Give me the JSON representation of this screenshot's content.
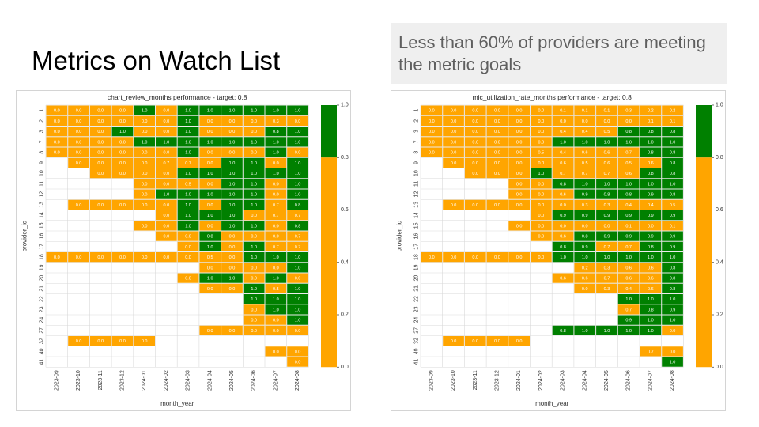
{
  "slide": {
    "title": "Metrics on Watch List",
    "callout": "Less than 60% of providers are meeting the metric goals"
  },
  "colors": {
    "meets_target": "#008000",
    "below_target": "#ffa500",
    "grid": "#d9d9d9"
  },
  "chart_data": [
    {
      "type": "heatmap",
      "title": "chart_review_months performance - target: 0.8",
      "xlabel": "month_year",
      "ylabel": "provider_id",
      "x": [
        "2023-09",
        "2023-10",
        "2023-11",
        "2023-12",
        "2024-01",
        "2024-02",
        "2024-03",
        "2024-04",
        "2024-05",
        "2024-06",
        "2024-07",
        "2024-08"
      ],
      "y": [
        "1",
        "2",
        "3",
        "7",
        "8",
        "9",
        "10",
        "11",
        "12",
        "13",
        "14",
        "15",
        "16",
        "17",
        "18",
        "19",
        "20",
        "21",
        "22",
        "23",
        "24",
        "27",
        "32",
        "40",
        "41"
      ],
      "values": [
        [
          0.0,
          0.0,
          0.0,
          0.0,
          1.0,
          0.0,
          1.0,
          1.0,
          1.0,
          1.0,
          1.0,
          1.0
        ],
        [
          0.0,
          0.0,
          0.0,
          0.0,
          0.0,
          0.0,
          1.0,
          0.0,
          0.0,
          0.0,
          0.3,
          0.0
        ],
        [
          0.0,
          0.0,
          0.0,
          1.0,
          0.0,
          0.0,
          1.0,
          0.0,
          0.0,
          0.0,
          0.8,
          1.0
        ],
        [
          0.0,
          0.0,
          0.0,
          0.0,
          1.0,
          1.0,
          1.0,
          1.0,
          1.0,
          1.0,
          1.0,
          1.0
        ],
        [
          0.0,
          0.0,
          0.0,
          0.0,
          0.0,
          0.0,
          1.0,
          0.0,
          0.0,
          0.0,
          1.0,
          0.0
        ],
        [
          null,
          0.0,
          0.0,
          0.0,
          0.0,
          0.7,
          0.7,
          0.0,
          1.0,
          1.0,
          0.0,
          1.0
        ],
        [
          null,
          null,
          0.0,
          0.0,
          0.0,
          0.0,
          1.0,
          1.0,
          1.0,
          1.0,
          1.0,
          1.0
        ],
        [
          null,
          null,
          null,
          null,
          0.0,
          0.0,
          0.5,
          0.0,
          1.0,
          1.0,
          0.0,
          1.0
        ],
        [
          null,
          null,
          null,
          null,
          0.0,
          1.0,
          1.0,
          1.0,
          1.0,
          1.0,
          0.0,
          1.0
        ],
        [
          null,
          0.0,
          0.0,
          0.0,
          0.0,
          0.0,
          1.0,
          0.0,
          1.0,
          1.0,
          0.7,
          0.8
        ],
        [
          null,
          null,
          null,
          null,
          null,
          0.0,
          1.0,
          1.0,
          1.0,
          0.0,
          0.7,
          0.7
        ],
        [
          null,
          null,
          null,
          null,
          0.0,
          0.0,
          1.0,
          0.0,
          1.0,
          1.0,
          0.0,
          0.8
        ],
        [
          null,
          null,
          null,
          null,
          null,
          0.0,
          0.0,
          0.8,
          0.0,
          0.0,
          0.0,
          0.7
        ],
        [
          null,
          null,
          null,
          null,
          null,
          null,
          0.0,
          1.0,
          0.0,
          1.0,
          0.7,
          0.7
        ],
        [
          0.0,
          0.0,
          0.0,
          0.0,
          0.0,
          0.0,
          0.0,
          0.5,
          0.0,
          1.0,
          1.0,
          1.0
        ],
        [
          null,
          null,
          null,
          null,
          null,
          null,
          null,
          0.0,
          0.0,
          0.0,
          0.0,
          1.0
        ],
        [
          null,
          null,
          null,
          null,
          null,
          null,
          0.0,
          1.0,
          1.0,
          0.0,
          1.0,
          0.0
        ],
        [
          null,
          null,
          null,
          null,
          null,
          null,
          null,
          0.0,
          0.0,
          1.0,
          0.5,
          1.0
        ],
        [
          null,
          null,
          null,
          null,
          null,
          null,
          null,
          null,
          null,
          1.0,
          1.0,
          1.0
        ],
        [
          null,
          null,
          null,
          null,
          null,
          null,
          null,
          null,
          null,
          0.0,
          1.0,
          1.0
        ],
        [
          null,
          null,
          null,
          null,
          null,
          null,
          null,
          null,
          null,
          0.0,
          0.0,
          1.0
        ],
        [
          null,
          null,
          null,
          null,
          null,
          null,
          null,
          0.0,
          0.0,
          0.0,
          0.0,
          0.0
        ],
        [
          null,
          0.0,
          0.0,
          0.0,
          0.0,
          null,
          null,
          null,
          null,
          null,
          null,
          null
        ],
        [
          null,
          null,
          null,
          null,
          null,
          null,
          null,
          null,
          null,
          null,
          0.0,
          0.0
        ],
        [
          null,
          null,
          null,
          null,
          null,
          null,
          null,
          null,
          null,
          null,
          null,
          0.0
        ]
      ],
      "target": 0.8,
      "colorbar": {
        "ticks": [
          "0.0",
          "0.2",
          "0.4",
          "0.6",
          "0.8",
          "1.0"
        ],
        "range": [
          0.0,
          1.0
        ]
      }
    },
    {
      "type": "heatmap",
      "title": "mic_utilization_rate_months performance - target: 0.8",
      "xlabel": "month_year",
      "ylabel": "provider_id",
      "x": [
        "2023-09",
        "2023-10",
        "2023-11",
        "2023-12",
        "2024-01",
        "2024-02",
        "2024-03",
        "2024-04",
        "2024-05",
        "2024-06",
        "2024-07",
        "2024-08"
      ],
      "y": [
        "1",
        "2",
        "3",
        "7",
        "8",
        "9",
        "10",
        "11",
        "12",
        "13",
        "14",
        "15",
        "16",
        "17",
        "18",
        "19",
        "20",
        "21",
        "22",
        "23",
        "24",
        "27",
        "32",
        "40",
        "41"
      ],
      "values": [
        [
          0.0,
          0.0,
          0.0,
          0.0,
          0.0,
          0.0,
          0.1,
          0.1,
          0.1,
          0.3,
          0.2,
          0.2
        ],
        [
          0.0,
          0.0,
          0.0,
          0.0,
          0.0,
          0.0,
          0.0,
          0.0,
          0.0,
          0.0,
          0.1,
          0.1
        ],
        [
          0.0,
          0.0,
          0.0,
          0.0,
          0.0,
          0.0,
          0.4,
          0.4,
          0.5,
          0.8,
          0.8,
          0.8
        ],
        [
          0.0,
          0.0,
          0.0,
          0.0,
          0.0,
          0.0,
          1.0,
          1.0,
          1.0,
          1.0,
          1.0,
          1.0
        ],
        [
          0.0,
          0.0,
          0.0,
          0.0,
          0.0,
          0.5,
          0.4,
          0.6,
          0.6,
          0.7,
          0.8,
          0.8
        ],
        [
          null,
          0.0,
          0.0,
          0.0,
          0.0,
          0.0,
          0.6,
          0.5,
          0.6,
          0.5,
          0.6,
          0.8
        ],
        [
          null,
          null,
          0.0,
          0.0,
          0.0,
          1.0,
          0.7,
          0.7,
          0.7,
          0.6,
          0.8,
          0.8
        ],
        [
          null,
          null,
          null,
          null,
          0.0,
          0.0,
          0.8,
          1.0,
          1.0,
          1.0,
          1.0,
          1.0
        ],
        [
          null,
          null,
          null,
          null,
          0.0,
          0.0,
          0.6,
          0.9,
          0.8,
          0.8,
          0.9,
          0.8
        ],
        [
          null,
          0.0,
          0.0,
          0.0,
          0.0,
          0.0,
          0.0,
          0.3,
          0.3,
          0.4,
          0.4,
          0.5
        ],
        [
          null,
          null,
          null,
          null,
          null,
          0.0,
          0.9,
          0.9,
          0.9,
          0.9,
          0.9,
          0.9
        ],
        [
          null,
          null,
          null,
          null,
          0.0,
          0.0,
          0.0,
          0.0,
          0.0,
          0.1,
          0.0,
          0.1
        ],
        [
          null,
          null,
          null,
          null,
          null,
          0.0,
          0.6,
          0.8,
          0.9,
          0.9,
          0.9,
          0.9
        ],
        [
          null,
          null,
          null,
          null,
          null,
          null,
          0.8,
          0.9,
          0.7,
          0.7,
          0.8,
          0.9
        ],
        [
          0.0,
          0.0,
          0.0,
          0.0,
          0.0,
          0.0,
          1.0,
          1.0,
          1.0,
          1.0,
          1.0,
          1.0
        ],
        [
          null,
          null,
          null,
          null,
          null,
          null,
          null,
          0.2,
          0.3,
          0.6,
          0.6,
          0.8
        ],
        [
          null,
          null,
          null,
          null,
          null,
          null,
          0.6,
          0.6,
          0.7,
          0.6,
          0.6,
          0.8
        ],
        [
          null,
          null,
          null,
          null,
          null,
          null,
          null,
          0.0,
          0.3,
          0.4,
          0.6,
          0.8
        ],
        [
          null,
          null,
          null,
          null,
          null,
          null,
          null,
          null,
          null,
          1.0,
          1.0,
          1.0
        ],
        [
          null,
          null,
          null,
          null,
          null,
          null,
          null,
          null,
          null,
          0.7,
          0.8,
          0.9
        ],
        [
          null,
          null,
          null,
          null,
          null,
          null,
          null,
          null,
          null,
          0.9,
          1.0,
          1.0
        ],
        [
          null,
          null,
          null,
          null,
          null,
          null,
          0.8,
          1.0,
          1.0,
          1.0,
          1.0,
          0.0
        ],
        [
          null,
          0.0,
          0.0,
          0.0,
          0.0,
          null,
          null,
          null,
          null,
          null,
          null,
          null
        ],
        [
          null,
          null,
          null,
          null,
          null,
          null,
          null,
          null,
          null,
          null,
          0.7,
          0.0
        ],
        [
          null,
          null,
          null,
          null,
          null,
          null,
          null,
          null,
          null,
          null,
          null,
          1.0
        ]
      ],
      "target": 0.8,
      "colorbar": {
        "ticks": [
          "0.0",
          "0.2",
          "0.4",
          "0.6",
          "0.8",
          "1.0"
        ],
        "range": [
          0.0,
          1.0
        ]
      }
    }
  ]
}
